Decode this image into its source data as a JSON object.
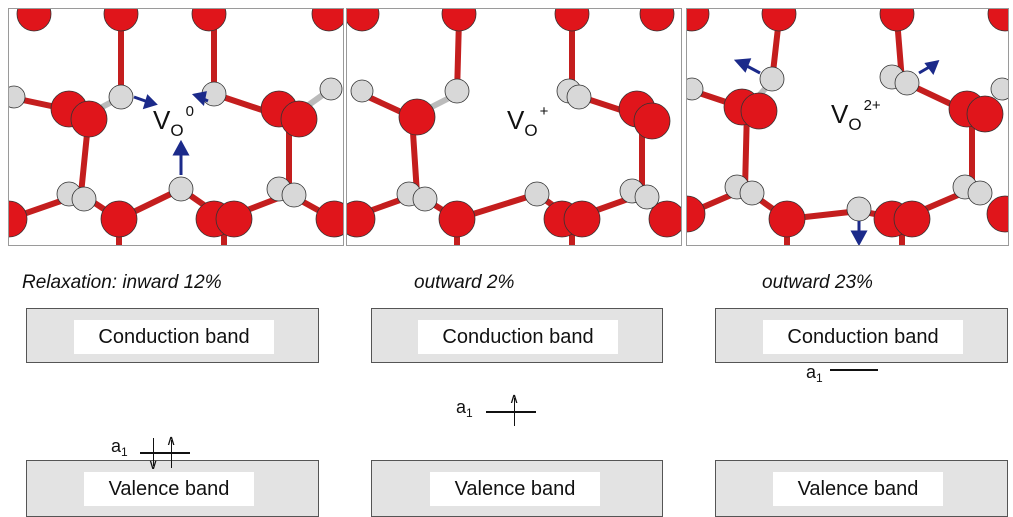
{
  "panels": [
    {
      "vacancy_base": "V",
      "vacancy_sub": "O",
      "vacancy_sup": "0",
      "relaxation": "Relaxation: inward 12%"
    },
    {
      "vacancy_base": "V",
      "vacancy_sub": "O",
      "vacancy_sup": "+",
      "relaxation": "outward 2%"
    },
    {
      "vacancy_base": "V",
      "vacancy_sub": "O",
      "vacancy_sup": "2+",
      "relaxation": "outward 23%"
    }
  ],
  "bands": {
    "conduction": "Conduction band",
    "valence": "Valence band"
  },
  "level_label_base": "a",
  "level_label_sub": "1",
  "colors": {
    "oxygen": "#e0151b",
    "metal": "#d8d8d8",
    "displacement_arrow": "#1b2a8a",
    "band_fill": "#e3e3e3"
  }
}
